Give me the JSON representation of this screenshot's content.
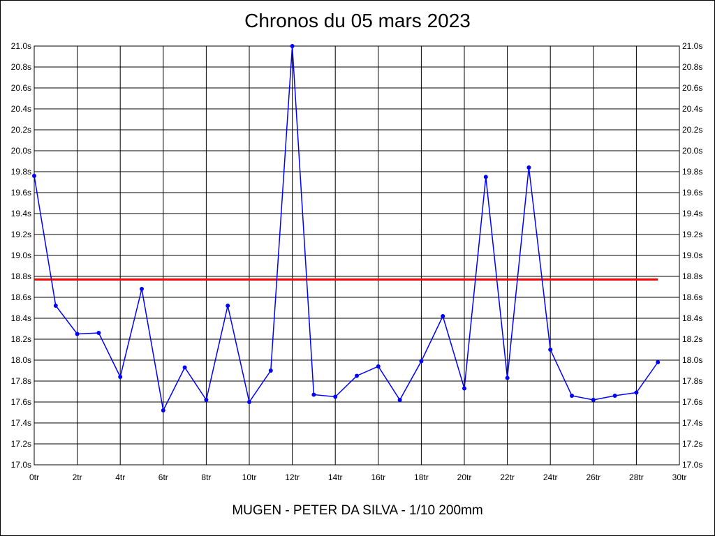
{
  "chart_data": {
    "type": "line",
    "title": "Chronos du 05 mars 2023",
    "subtitle": "MUGEN - PETER DA SILVA - 1/10 200mm",
    "xlim": [
      0,
      30
    ],
    "ylim": [
      17.0,
      21.0
    ],
    "x_ticks": [
      {
        "value": 0,
        "label": "0tr"
      },
      {
        "value": 2,
        "label": "2tr"
      },
      {
        "value": 4,
        "label": "4tr"
      },
      {
        "value": 6,
        "label": "6tr"
      },
      {
        "value": 8,
        "label": "8tr"
      },
      {
        "value": 10,
        "label": "10tr"
      },
      {
        "value": 12,
        "label": "12tr"
      },
      {
        "value": 14,
        "label": "14tr"
      },
      {
        "value": 16,
        "label": "16tr"
      },
      {
        "value": 18,
        "label": "18tr"
      },
      {
        "value": 20,
        "label": "20tr"
      },
      {
        "value": 22,
        "label": "22tr"
      },
      {
        "value": 24,
        "label": "24tr"
      },
      {
        "value": 26,
        "label": "26tr"
      },
      {
        "value": 28,
        "label": "28tr"
      },
      {
        "value": 30,
        "label": "30tr"
      }
    ],
    "y_ticks": [
      {
        "value": 21.0,
        "label": "21.0s"
      },
      {
        "value": 20.8,
        "label": "20.8s"
      },
      {
        "value": 20.6,
        "label": "20.6s"
      },
      {
        "value": 20.4,
        "label": "20.4s"
      },
      {
        "value": 20.2,
        "label": "20.2s"
      },
      {
        "value": 20.0,
        "label": "20.0s"
      },
      {
        "value": 19.8,
        "label": "19.8s"
      },
      {
        "value": 19.6,
        "label": "19.6s"
      },
      {
        "value": 19.4,
        "label": "19.4s"
      },
      {
        "value": 19.2,
        "label": "19.2s"
      },
      {
        "value": 19.0,
        "label": "19.0s"
      },
      {
        "value": 18.8,
        "label": "18.8s"
      },
      {
        "value": 18.6,
        "label": "18.6s"
      },
      {
        "value": 18.4,
        "label": "18.4s"
      },
      {
        "value": 18.2,
        "label": "18.2s"
      },
      {
        "value": 18.0,
        "label": "18.0s"
      },
      {
        "value": 17.8,
        "label": "17.8s"
      },
      {
        "value": 17.6,
        "label": "17.6s"
      },
      {
        "value": 17.4,
        "label": "17.4s"
      },
      {
        "value": 17.2,
        "label": "17.2s"
      },
      {
        "value": 17.0,
        "label": "17.0s"
      }
    ],
    "grid": true,
    "right_axis_labels": true,
    "series": [
      {
        "color": "#0000ff",
        "marker": "circle",
        "points": [
          {
            "x": 0,
            "y": 19.76
          },
          {
            "x": 1,
            "y": 18.52
          },
          {
            "x": 2,
            "y": 18.25
          },
          {
            "x": 3,
            "y": 18.26
          },
          {
            "x": 4,
            "y": 17.84
          },
          {
            "x": 5,
            "y": 18.68
          },
          {
            "x": 6,
            "y": 17.52
          },
          {
            "x": 7,
            "y": 17.93
          },
          {
            "x": 8,
            "y": 17.62
          },
          {
            "x": 9,
            "y": 18.52
          },
          {
            "x": 10,
            "y": 17.6
          },
          {
            "x": 11,
            "y": 17.9
          },
          {
            "x": 12,
            "y": 21.0
          },
          {
            "x": 13,
            "y": 17.67
          },
          {
            "x": 14,
            "y": 17.65
          },
          {
            "x": 15,
            "y": 17.85
          },
          {
            "x": 16,
            "y": 17.94
          },
          {
            "x": 17,
            "y": 17.62
          },
          {
            "x": 18,
            "y": 17.99
          },
          {
            "x": 19,
            "y": 18.42
          },
          {
            "x": 20,
            "y": 17.73
          },
          {
            "x": 21,
            "y": 19.75
          },
          {
            "x": 22,
            "y": 17.83
          },
          {
            "x": 23,
            "y": 19.84
          },
          {
            "x": 24,
            "y": 18.1
          },
          {
            "x": 25,
            "y": 17.66
          },
          {
            "x": 26,
            "y": 17.62
          },
          {
            "x": 27,
            "y": 17.66
          },
          {
            "x": 28,
            "y": 17.69
          },
          {
            "x": 29,
            "y": 17.98
          }
        ]
      }
    ],
    "reference_line": {
      "y": 18.77,
      "x_start": 0,
      "x_end": 29,
      "color": "#ff0000"
    }
  }
}
